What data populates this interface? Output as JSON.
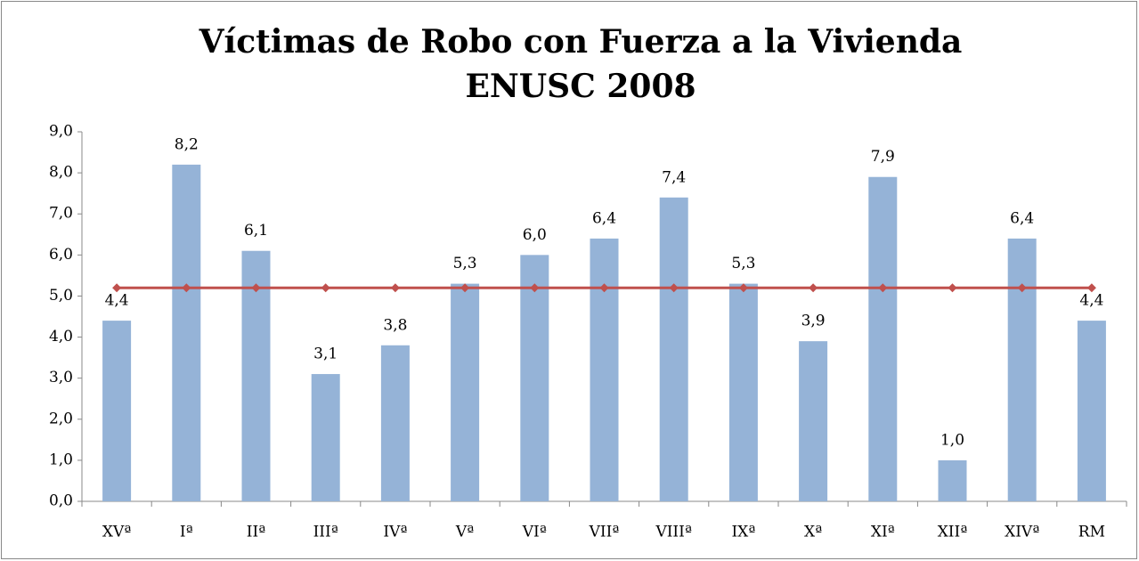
{
  "chart_data": {
    "type": "bar",
    "title": [
      "Víctimas de Robo con Fuerza a la Vivienda",
      "ENUSC 2008"
    ],
    "categories": [
      "XVª",
      "Iª",
      "IIª",
      "IIIª",
      "IVª",
      "Vª",
      "VIª",
      "VIIª",
      "VIIIª",
      "IXª",
      "Xª",
      "XIª",
      "XIIª",
      "XIVª",
      "RM"
    ],
    "series": [
      {
        "type": "bar",
        "color": "#95b3d7",
        "values": [
          4.4,
          8.2,
          6.1,
          3.1,
          3.8,
          5.3,
          6.0,
          6.4,
          7.4,
          5.3,
          3.9,
          7.9,
          1.0,
          6.4,
          4.4
        ],
        "value_labels": [
          "4,4",
          "8,2",
          "6,1",
          "3,1",
          "3,8",
          "5,3",
          "6,0",
          "6,4",
          "7,4",
          "5,3",
          "3,9",
          "7,9",
          "1,0",
          "6,4",
          "4,4"
        ]
      },
      {
        "type": "line",
        "color": "#c0504d",
        "values": [
          5.2,
          5.2,
          5.2,
          5.2,
          5.2,
          5.2,
          5.2,
          5.2,
          5.2,
          5.2,
          5.2,
          5.2,
          5.2,
          5.2,
          5.2
        ]
      }
    ],
    "ylim": [
      0,
      9
    ],
    "yticks": [
      {
        "value": 0,
        "label": "0,0"
      },
      {
        "value": 1,
        "label": "1,0"
      },
      {
        "value": 2,
        "label": "2,0"
      },
      {
        "value": 3,
        "label": "3,0"
      },
      {
        "value": 4,
        "label": "4,0"
      },
      {
        "value": 5,
        "label": "5,0"
      },
      {
        "value": 6,
        "label": "6,0"
      },
      {
        "value": 7,
        "label": "7,0"
      },
      {
        "value": 8,
        "label": "8,0"
      },
      {
        "value": 9,
        "label": "9,0"
      }
    ]
  }
}
